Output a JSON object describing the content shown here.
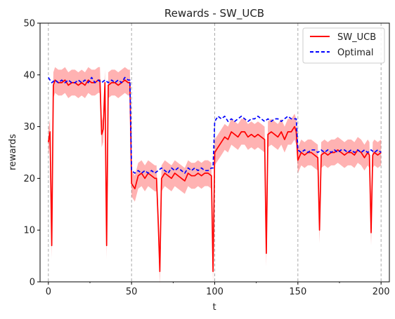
{
  "chart_data": {
    "type": "line",
    "title": "Rewards - SW_UCB",
    "xlabel": "t",
    "ylabel": "rewards",
    "xlim": [
      -5,
      205
    ],
    "ylim": [
      0,
      50
    ],
    "x_ticks": [
      0,
      50,
      100,
      150,
      200
    ],
    "x_tick_labels": [
      "0",
      "50",
      "100",
      "150",
      "200"
    ],
    "y_ticks": [
      0,
      10,
      20,
      30,
      40,
      50
    ],
    "y_tick_labels": [
      "0",
      "10",
      "20",
      "30",
      "40",
      "50"
    ],
    "x_minor_ticks": [
      25,
      75,
      125,
      175
    ],
    "change_points": [
      0,
      50,
      100,
      150,
      200
    ],
    "grid": false,
    "legend_position": "top-right",
    "series": [
      {
        "name": "SW_UCB",
        "color": "#ff0000",
        "style": "solid",
        "band_color": "#ff0000",
        "points": [
          [
            0,
            27.0
          ],
          [
            1,
            29.0
          ],
          [
            2,
            7.0
          ],
          [
            3,
            38.0
          ],
          [
            4,
            39.0
          ],
          [
            6,
            38.5
          ],
          [
            8,
            38.5
          ],
          [
            10,
            39.0
          ],
          [
            12,
            38.0
          ],
          [
            14,
            38.5
          ],
          [
            16,
            38.5
          ],
          [
            18,
            38.0
          ],
          [
            20,
            38.5
          ],
          [
            22,
            38.0
          ],
          [
            24,
            39.0
          ],
          [
            26,
            38.5
          ],
          [
            28,
            38.5
          ],
          [
            30,
            39.0
          ],
          [
            31,
            39.0
          ],
          [
            32,
            28.5
          ],
          [
            33,
            29.5
          ],
          [
            34,
            38.5
          ],
          [
            35,
            7.0
          ],
          [
            36,
            38.0
          ],
          [
            38,
            38.5
          ],
          [
            40,
            38.5
          ],
          [
            42,
            38.0
          ],
          [
            44,
            38.5
          ],
          [
            46,
            39.0
          ],
          [
            48,
            38.5
          ],
          [
            49,
            38.5
          ],
          [
            50,
            19.0
          ],
          [
            51,
            18.5
          ],
          [
            52,
            18.0
          ],
          [
            54,
            20.5
          ],
          [
            56,
            21.0
          ],
          [
            58,
            20.0
          ],
          [
            60,
            21.0
          ],
          [
            62,
            20.5
          ],
          [
            64,
            20.0
          ],
          [
            65,
            20.0
          ],
          [
            66,
            12.0
          ],
          [
            67,
            2.0
          ],
          [
            68,
            20.0
          ],
          [
            70,
            21.0
          ],
          [
            72,
            20.5
          ],
          [
            74,
            20.0
          ],
          [
            76,
            21.0
          ],
          [
            78,
            20.5
          ],
          [
            80,
            20.0
          ],
          [
            82,
            19.5
          ],
          [
            84,
            21.0
          ],
          [
            86,
            20.5
          ],
          [
            88,
            20.5
          ],
          [
            90,
            21.0
          ],
          [
            92,
            20.5
          ],
          [
            94,
            21.0
          ],
          [
            96,
            21.0
          ],
          [
            98,
            20.5
          ],
          [
            99,
            2.0
          ],
          [
            100,
            25.0
          ],
          [
            102,
            26.0
          ],
          [
            104,
            27.0
          ],
          [
            106,
            28.0
          ],
          [
            108,
            27.5
          ],
          [
            110,
            29.0
          ],
          [
            112,
            28.5
          ],
          [
            114,
            28.0
          ],
          [
            116,
            29.0
          ],
          [
            118,
            29.0
          ],
          [
            120,
            28.0
          ],
          [
            122,
            28.5
          ],
          [
            124,
            28.0
          ],
          [
            126,
            28.5
          ],
          [
            128,
            28.0
          ],
          [
            130,
            27.5
          ],
          [
            131,
            5.5
          ],
          [
            132,
            28.5
          ],
          [
            134,
            29.0
          ],
          [
            136,
            28.5
          ],
          [
            138,
            28.0
          ],
          [
            140,
            29.0
          ],
          [
            142,
            27.5
          ],
          [
            144,
            29.0
          ],
          [
            146,
            29.0
          ],
          [
            148,
            30.0
          ],
          [
            149,
            29.0
          ],
          [
            150,
            23.5
          ],
          [
            152,
            25.0
          ],
          [
            154,
            24.5
          ],
          [
            156,
            25.0
          ],
          [
            158,
            25.0
          ],
          [
            160,
            24.5
          ],
          [
            162,
            24.0
          ],
          [
            163,
            10.0
          ],
          [
            164,
            24.5
          ],
          [
            166,
            25.0
          ],
          [
            168,
            24.5
          ],
          [
            170,
            25.0
          ],
          [
            172,
            25.0
          ],
          [
            174,
            25.5
          ],
          [
            176,
            25.0
          ],
          [
            178,
            24.5
          ],
          [
            180,
            25.0
          ],
          [
            182,
            25.0
          ],
          [
            184,
            24.5
          ],
          [
            186,
            25.5
          ],
          [
            188,
            25.0
          ],
          [
            190,
            24.0
          ],
          [
            192,
            25.0
          ],
          [
            193,
            24.5
          ],
          [
            194,
            9.5
          ],
          [
            195,
            24.5
          ],
          [
            196,
            25.0
          ],
          [
            198,
            24.5
          ],
          [
            200,
            25.0
          ]
        ]
      },
      {
        "name": "Optimal",
        "color": "#0000ff",
        "style": "dashed",
        "points": [
          [
            0,
            39.5
          ],
          [
            1,
            39.0
          ],
          [
            2,
            38.5
          ],
          [
            4,
            39.0
          ],
          [
            6,
            38.5
          ],
          [
            8,
            39.0
          ],
          [
            10,
            38.5
          ],
          [
            12,
            39.0
          ],
          [
            14,
            38.5
          ],
          [
            16,
            38.5
          ],
          [
            18,
            39.0
          ],
          [
            20,
            38.5
          ],
          [
            22,
            39.0
          ],
          [
            24,
            38.5
          ],
          [
            26,
            39.5
          ],
          [
            28,
            38.5
          ],
          [
            30,
            39.0
          ],
          [
            32,
            38.5
          ],
          [
            34,
            39.0
          ],
          [
            36,
            38.5
          ],
          [
            38,
            39.0
          ],
          [
            40,
            38.5
          ],
          [
            42,
            39.0
          ],
          [
            44,
            38.5
          ],
          [
            46,
            39.5
          ],
          [
            48,
            39.0
          ],
          [
            49,
            39.0
          ],
          [
            50,
            21.5
          ],
          [
            52,
            21.0
          ],
          [
            54,
            21.5
          ],
          [
            56,
            21.0
          ],
          [
            58,
            21.5
          ],
          [
            60,
            21.0
          ],
          [
            62,
            21.5
          ],
          [
            64,
            21.0
          ],
          [
            66,
            21.5
          ],
          [
            68,
            22.0
          ],
          [
            70,
            21.5
          ],
          [
            72,
            21.0
          ],
          [
            74,
            22.0
          ],
          [
            76,
            21.5
          ],
          [
            78,
            22.0
          ],
          [
            80,
            21.5
          ],
          [
            82,
            21.0
          ],
          [
            84,
            22.0
          ],
          [
            86,
            21.5
          ],
          [
            88,
            22.0
          ],
          [
            90,
            21.5
          ],
          [
            92,
            22.0
          ],
          [
            94,
            21.5
          ],
          [
            96,
            21.5
          ],
          [
            98,
            22.0
          ],
          [
            99,
            22.0
          ],
          [
            100,
            31.0
          ],
          [
            102,
            32.0
          ],
          [
            104,
            31.5
          ],
          [
            106,
            32.0
          ],
          [
            108,
            31.0
          ],
          [
            110,
            31.5
          ],
          [
            112,
            31.0
          ],
          [
            114,
            31.5
          ],
          [
            116,
            32.0
          ],
          [
            118,
            31.5
          ],
          [
            120,
            31.0
          ],
          [
            122,
            31.5
          ],
          [
            124,
            31.5
          ],
          [
            126,
            32.0
          ],
          [
            128,
            31.5
          ],
          [
            130,
            31.0
          ],
          [
            132,
            31.5
          ],
          [
            134,
            31.0
          ],
          [
            136,
            31.5
          ],
          [
            138,
            31.5
          ],
          [
            140,
            31.0
          ],
          [
            142,
            31.5
          ],
          [
            144,
            32.0
          ],
          [
            146,
            31.5
          ],
          [
            148,
            31.5
          ],
          [
            149,
            31.5
          ],
          [
            150,
            25.5
          ],
          [
            152,
            25.0
          ],
          [
            154,
            25.5
          ],
          [
            156,
            25.0
          ],
          [
            158,
            25.5
          ],
          [
            160,
            25.5
          ],
          [
            162,
            25.0
          ],
          [
            164,
            25.5
          ],
          [
            166,
            25.0
          ],
          [
            168,
            25.5
          ],
          [
            170,
            25.0
          ],
          [
            172,
            25.5
          ],
          [
            174,
            25.0
          ],
          [
            176,
            25.5
          ],
          [
            178,
            25.5
          ],
          [
            180,
            25.0
          ],
          [
            182,
            25.5
          ],
          [
            184,
            25.0
          ],
          [
            186,
            25.5
          ],
          [
            188,
            25.0
          ],
          [
            190,
            25.5
          ],
          [
            192,
            25.0
          ],
          [
            194,
            25.5
          ],
          [
            196,
            25.0
          ],
          [
            198,
            25.5
          ],
          [
            200,
            25.0
          ]
        ]
      }
    ]
  }
}
